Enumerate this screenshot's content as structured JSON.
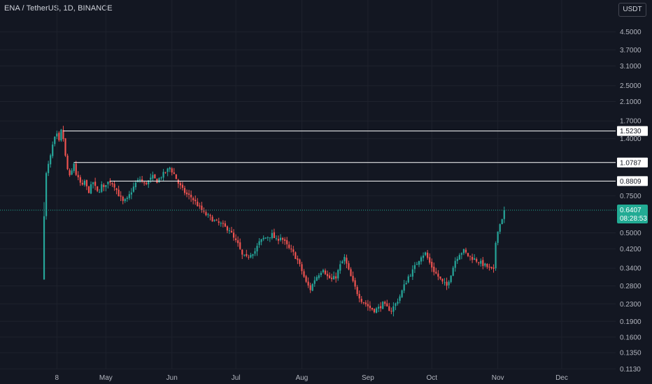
{
  "header": {
    "symbol": "ENA / TetherUS, 1D, BINANCE",
    "currency": "USDT"
  },
  "colors": {
    "up": "#26a69a",
    "down": "#ef5350",
    "grid": "#1e222d",
    "level": "#ffffff",
    "last": "#22ab94"
  },
  "chart_data": {
    "type": "candlestick",
    "title": "ENA / TetherUS, 1D, BINANCE",
    "y_scale": "log",
    "ylim": [
      0.105,
      6.0
    ],
    "y_ticks": [
      "4.5000",
      "3.7000",
      "3.1000",
      "2.5000",
      "2.1000",
      "1.7000",
      "1.4000",
      "0.7500",
      "0.5000",
      "0.4200",
      "0.3400",
      "0.2800",
      "0.2300",
      "0.1900",
      "0.1600",
      "0.1350",
      "0.1130"
    ],
    "x_labels": [
      {
        "label": "8",
        "day": 7
      },
      {
        "label": "May",
        "day": 30
      },
      {
        "label": "Jun",
        "day": 61
      },
      {
        "label": "Jul",
        "day": 91
      },
      {
        "label": "Aug",
        "day": 122
      },
      {
        "label": "Sep",
        "day": 153
      },
      {
        "label": "Oct",
        "day": 183
      },
      {
        "label": "Nov",
        "day": 214
      },
      {
        "label": "Dec",
        "day": 244
      }
    ],
    "levels": [
      {
        "value": 1.523,
        "label": "1.5230",
        "from_day": 10
      },
      {
        "value": 1.0787,
        "label": "1.0787",
        "from_day": 15
      },
      {
        "value": 0.8809,
        "label": "0.8809",
        "from_day": 32
      }
    ],
    "last_price": {
      "value": 0.6407,
      "label": "0.6407",
      "countdown": "08:28:53"
    },
    "close_anchors": [
      [
        1,
        0.6
      ],
      [
        2,
        0.95
      ],
      [
        3,
        1.05
      ],
      [
        4,
        1.15
      ],
      [
        5,
        1.3
      ],
      [
        6,
        1.4
      ],
      [
        7,
        1.45
      ],
      [
        8,
        1.35
      ],
      [
        9,
        1.52
      ],
      [
        10,
        1.4
      ],
      [
        11,
        1.15
      ],
      [
        12,
        1.0
      ],
      [
        13,
        0.92
      ],
      [
        14,
        0.98
      ],
      [
        15,
        1.07
      ],
      [
        16,
        0.95
      ],
      [
        17,
        0.9
      ],
      [
        18,
        0.86
      ],
      [
        19,
        0.83
      ],
      [
        20,
        0.88
      ],
      [
        21,
        0.82
      ],
      [
        22,
        0.79
      ],
      [
        23,
        0.83
      ],
      [
        24,
        0.87
      ],
      [
        25,
        0.82
      ],
      [
        26,
        0.78
      ],
      [
        27,
        0.8
      ],
      [
        28,
        0.84
      ],
      [
        29,
        0.81
      ],
      [
        30,
        0.86
      ],
      [
        32,
        0.88
      ],
      [
        34,
        0.84
      ],
      [
        36,
        0.76
      ],
      [
        38,
        0.7
      ],
      [
        40,
        0.72
      ],
      [
        42,
        0.79
      ],
      [
        44,
        0.86
      ],
      [
        46,
        0.9
      ],
      [
        48,
        0.85
      ],
      [
        50,
        0.88
      ],
      [
        52,
        0.92
      ],
      [
        54,
        0.88
      ],
      [
        56,
        0.93
      ],
      [
        58,
        0.97
      ],
      [
        60,
        1.02
      ],
      [
        62,
        0.95
      ],
      [
        64,
        0.86
      ],
      [
        66,
        0.8
      ],
      [
        68,
        0.76
      ],
      [
        70,
        0.74
      ],
      [
        72,
        0.7
      ],
      [
        74,
        0.66
      ],
      [
        76,
        0.62
      ],
      [
        78,
        0.6
      ],
      [
        80,
        0.58
      ],
      [
        82,
        0.56
      ],
      [
        84,
        0.55
      ],
      [
        86,
        0.53
      ],
      [
        88,
        0.52
      ],
      [
        90,
        0.47
      ],
      [
        92,
        0.44
      ],
      [
        94,
        0.39
      ],
      [
        96,
        0.38
      ],
      [
        98,
        0.4
      ],
      [
        100,
        0.41
      ],
      [
        102,
        0.45
      ],
      [
        104,
        0.47
      ],
      [
        106,
        0.48
      ],
      [
        108,
        0.49
      ],
      [
        110,
        0.46
      ],
      [
        112,
        0.48
      ],
      [
        114,
        0.45
      ],
      [
        116,
        0.42
      ],
      [
        118,
        0.4
      ],
      [
        120,
        0.37
      ],
      [
        122,
        0.33
      ],
      [
        124,
        0.29
      ],
      [
        126,
        0.27
      ],
      [
        128,
        0.3
      ],
      [
        130,
        0.32
      ],
      [
        132,
        0.34
      ],
      [
        134,
        0.31
      ],
      [
        136,
        0.3
      ],
      [
        138,
        0.31
      ],
      [
        140,
        0.35
      ],
      [
        142,
        0.38
      ],
      [
        144,
        0.33
      ],
      [
        146,
        0.29
      ],
      [
        148,
        0.26
      ],
      [
        150,
        0.24
      ],
      [
        152,
        0.23
      ],
      [
        154,
        0.22
      ],
      [
        156,
        0.215
      ],
      [
        158,
        0.22
      ],
      [
        160,
        0.23
      ],
      [
        162,
        0.22
      ],
      [
        164,
        0.215
      ],
      [
        166,
        0.23
      ],
      [
        168,
        0.25
      ],
      [
        170,
        0.28
      ],
      [
        172,
        0.31
      ],
      [
        174,
        0.33
      ],
      [
        176,
        0.36
      ],
      [
        178,
        0.39
      ],
      [
        180,
        0.4
      ],
      [
        182,
        0.36
      ],
      [
        184,
        0.33
      ],
      [
        186,
        0.31
      ],
      [
        188,
        0.29
      ],
      [
        190,
        0.28
      ],
      [
        192,
        0.32
      ],
      [
        194,
        0.37
      ],
      [
        196,
        0.4
      ],
      [
        198,
        0.41
      ],
      [
        200,
        0.39
      ],
      [
        202,
        0.38
      ],
      [
        204,
        0.37
      ],
      [
        206,
        0.36
      ],
      [
        208,
        0.35
      ],
      [
        210,
        0.34
      ],
      [
        212,
        0.33
      ],
      [
        213,
        0.45
      ],
      [
        214,
        0.52
      ],
      [
        215,
        0.55
      ],
      [
        216,
        0.59
      ],
      [
        217,
        0.6407
      ]
    ]
  }
}
